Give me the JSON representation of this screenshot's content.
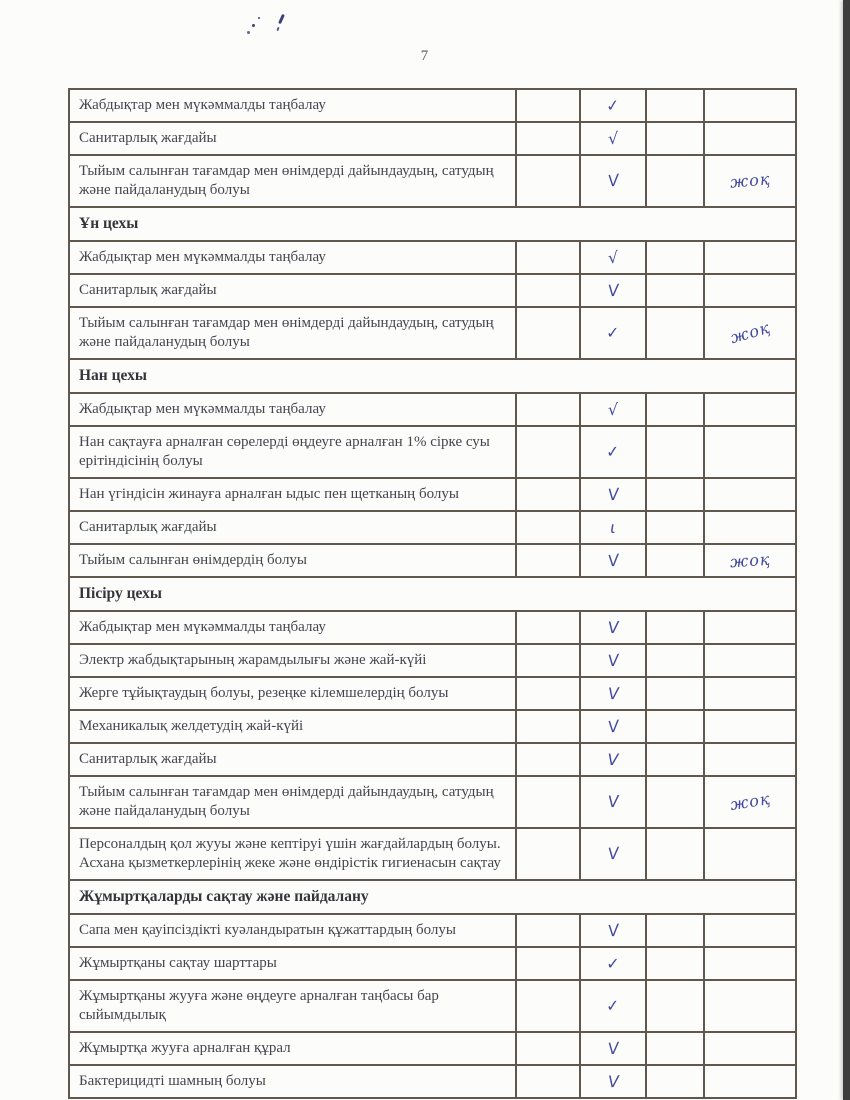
{
  "page": {
    "number": "7"
  },
  "ink_color": "#434a9e",
  "note_text": "жоқ",
  "table": {
    "columns_note": [
      "item",
      "blank",
      "check",
      "blank",
      "remark"
    ],
    "rows": [
      {
        "type": "item",
        "label": "Жабдықтар мен мүкәммалды таңбалау",
        "mark": "✓",
        "note": ""
      },
      {
        "type": "item",
        "label": "Санитарлық жағдайы",
        "mark": "√",
        "note": ""
      },
      {
        "type": "item",
        "label": "Тыйым салынған тағамдар мен өнімдерді дайындаудың, сатудың және пайдаланудың болуы",
        "mark": "V",
        "note": "жоқ"
      },
      {
        "type": "section",
        "label": "Ұн цехы"
      },
      {
        "type": "item",
        "label": "Жабдықтар мен мүкәммалды таңбалау",
        "mark": "√",
        "note": ""
      },
      {
        "type": "item",
        "label": "Санитарлық жағдайы",
        "mark": "V",
        "note": ""
      },
      {
        "type": "item",
        "label": "Тыйым салынған тағамдар мен өнімдерді дайындаудың, сатудың және пайдаланудың болуы",
        "mark": "✓",
        "note": "жоқ"
      },
      {
        "type": "section",
        "label": "Нан цехы"
      },
      {
        "type": "item",
        "label": "Жабдықтар мен мүкәммалды таңбалау",
        "mark": "√",
        "note": ""
      },
      {
        "type": "item",
        "label": "Нан сақтауға арналған сөрелерді өңдеуге арналған 1% сірке суы ерітіндісінің болуы",
        "mark": "✓",
        "note": ""
      },
      {
        "type": "item",
        "label": "Нан үгіндісін жинауға арналған ыдыс пен щетканың болуы",
        "mark": "V",
        "note": ""
      },
      {
        "type": "item",
        "label": "Санитарлық жағдайы",
        "mark": "ι",
        "note": ""
      },
      {
        "type": "item",
        "label": "Тыйым салынған өнімдердің болуы",
        "mark": "V",
        "note": "жоқ"
      },
      {
        "type": "section",
        "label": "Пісіру цехы"
      },
      {
        "type": "item",
        "label": "Жабдықтар мен мүкәммалды таңбалау",
        "mark": "V",
        "note": ""
      },
      {
        "type": "item",
        "label": "Электр жабдықтарының жарамдылығы және жай-күйі",
        "mark": "V",
        "note": ""
      },
      {
        "type": "item",
        "label": "Жерге тұйықтаудың болуы, резеңке кілемшелердің болуы",
        "mark": "V",
        "note": ""
      },
      {
        "type": "item",
        "label": "Механикалық желдетудің жай-күйі",
        "mark": "V",
        "note": ""
      },
      {
        "type": "item",
        "label": "Санитарлық жағдайы",
        "mark": "V",
        "note": ""
      },
      {
        "type": "item",
        "label": "Тыйым салынған тағамдар мен өнімдерді дайындаудың, сатудың және пайдаланудың болуы",
        "mark": "V",
        "note": "жоқ"
      },
      {
        "type": "item",
        "label": "Персоналдың қол жууы және кептіруі үшін жағдайлардың болуы. Асхана қызметкерлерінің жеке және өндірістік гигиенасын сақтау",
        "mark": "V",
        "note": ""
      },
      {
        "type": "section",
        "label": "Жұмыртқаларды сақтау және пайдалану"
      },
      {
        "type": "item",
        "label": "Сапа мен қауіпсіздікті куәландыратын құжаттардың болуы",
        "mark": "V",
        "note": ""
      },
      {
        "type": "item",
        "label": "Жұмыртқаны сақтау шарттары",
        "mark": "✓",
        "note": ""
      },
      {
        "type": "item",
        "label": "Жұмыртқаны жууға және өңдеуге арналған таңбасы бар сыйымдылық",
        "mark": "✓",
        "note": ""
      },
      {
        "type": "item",
        "label": "Жұмыртқа жууға арналған құрал",
        "mark": "V",
        "note": ""
      },
      {
        "type": "item",
        "label": "Бактерицидті шамның болуы",
        "mark": "V",
        "note": ""
      }
    ]
  }
}
